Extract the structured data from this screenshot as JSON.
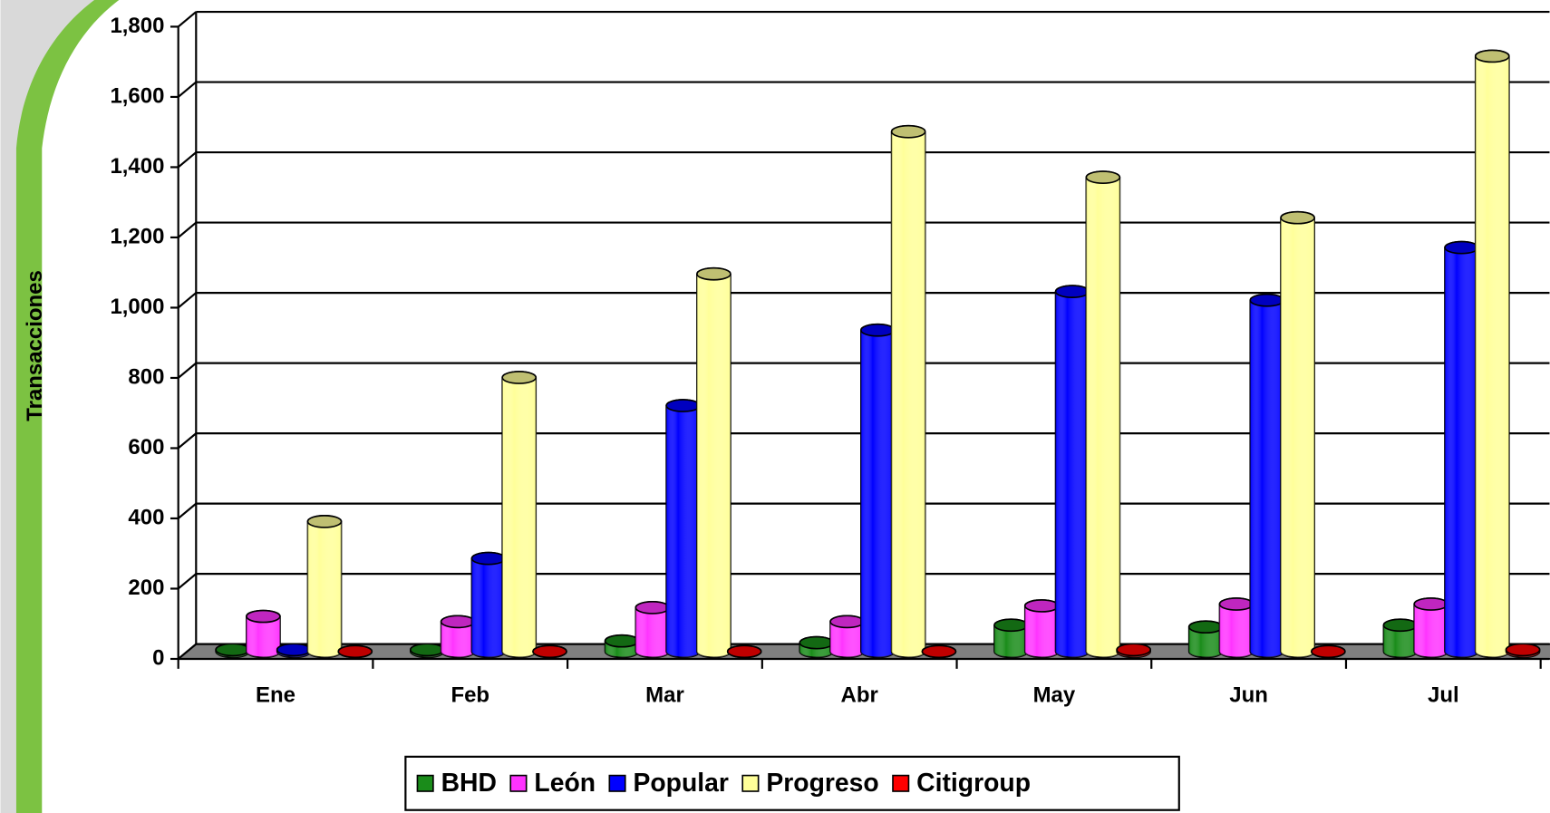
{
  "chart_data": {
    "type": "bar3d",
    "y_axis_label": "Transacciones",
    "categories": [
      "Ene",
      "Feb",
      "Mar",
      "Abr",
      "May",
      "Jun",
      "Jul"
    ],
    "series": [
      {
        "name": "BHD",
        "color": "#1a8c1a",
        "values": [
          5,
          5,
          30,
          25,
          75,
          70,
          75
        ]
      },
      {
        "name": "León",
        "color": "#ff33ff",
        "values": [
          100,
          85,
          125,
          85,
          130,
          135,
          135
        ]
      },
      {
        "name": "Popular",
        "color": "#0000ff",
        "values": [
          5,
          265,
          700,
          915,
          1025,
          1000,
          1150
        ]
      },
      {
        "name": "Progreso",
        "color": "#ffff99",
        "values": [
          370,
          780,
          1075,
          1480,
          1350,
          1235,
          1695
        ]
      },
      {
        "name": "Citigroup",
        "color": "#ff0000",
        "values": [
          0,
          0,
          0,
          0,
          5,
          0,
          5
        ]
      }
    ],
    "ylim": [
      0,
      1800
    ],
    "yticks": [
      0,
      200,
      400,
      600,
      800,
      {
        "value": 1000,
        "label": "1,000"
      },
      {
        "value": 1200,
        "label": "1,200"
      },
      {
        "value": 1400,
        "label": "1,400"
      },
      {
        "value": 1600,
        "label": "1,600"
      },
      {
        "value": 1800,
        "label": "1,800"
      }
    ],
    "grid": true
  }
}
